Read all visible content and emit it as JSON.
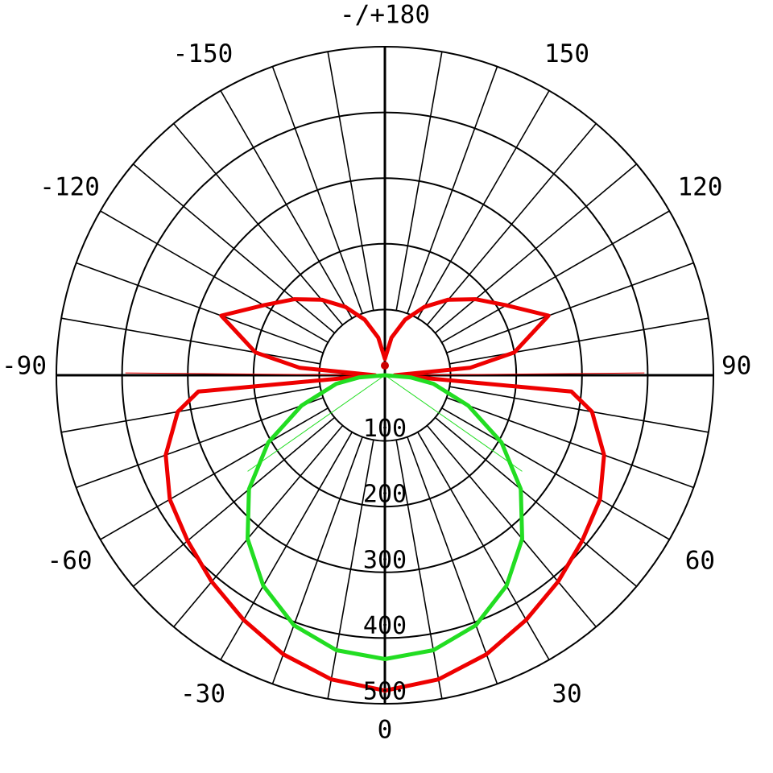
{
  "chart_data": {
    "type": "polar",
    "angle_labels": [
      {
        "angle": 0,
        "text": "0"
      },
      {
        "angle": 30,
        "text": "30"
      },
      {
        "angle": -30,
        "text": "-30"
      },
      {
        "angle": 60,
        "text": "60"
      },
      {
        "angle": -60,
        "text": "-60"
      },
      {
        "angle": 90,
        "text": "90"
      },
      {
        "angle": -90,
        "text": "-90"
      },
      {
        "angle": 120,
        "text": "120"
      },
      {
        "angle": -120,
        "text": "-120"
      },
      {
        "angle": 150,
        "text": "150"
      },
      {
        "angle": -150,
        "text": "-150"
      },
      {
        "angle": 180,
        "text": "-/+180"
      }
    ],
    "radial_ticks": [
      {
        "value": 100,
        "text": "100"
      },
      {
        "value": 200,
        "text": "200"
      },
      {
        "value": 300,
        "text": "300"
      },
      {
        "value": 400,
        "text": "400"
      },
      {
        "value": 500,
        "text": "500"
      }
    ],
    "r_max": 500,
    "grid": true,
    "angular_grid_step_deg": 10,
    "zero_direction": "bottom",
    "series": [
      {
        "color": "#ee0000",
        "angles": [
          -180,
          -170,
          -160,
          -150,
          -140,
          -130,
          -120,
          -110,
          -100,
          -95,
          -90,
          -85,
          -80,
          -70,
          -60,
          -50,
          -40,
          -30,
          -20,
          -10,
          0,
          10,
          20,
          30,
          40,
          50,
          60,
          70,
          80,
          85,
          90,
          95,
          100,
          110,
          120,
          130,
          140,
          150,
          160,
          170,
          180
        ],
        "values": [
          25,
          58,
          90,
          120,
          150,
          180,
          213,
          265,
          200,
          130,
          15,
          285,
          320,
          355,
          378,
          392,
          410,
          430,
          452,
          470,
          480,
          470,
          452,
          430,
          410,
          392,
          378,
          355,
          320,
          285,
          15,
          130,
          200,
          265,
          213,
          180,
          150,
          120,
          90,
          58,
          25
        ]
      },
      {
        "color": "#22dd22",
        "angles": [
          -90,
          -85,
          -80,
          -70,
          -60,
          -50,
          -40,
          -30,
          -20,
          -10,
          0,
          10,
          20,
          30,
          40,
          50,
          60,
          70,
          80,
          85,
          90
        ],
        "values": [
          0,
          40,
          75,
          135,
          205,
          270,
          325,
          370,
          405,
          425,
          432,
          425,
          405,
          370,
          325,
          270,
          205,
          135,
          75,
          40,
          0
        ]
      }
    ]
  }
}
